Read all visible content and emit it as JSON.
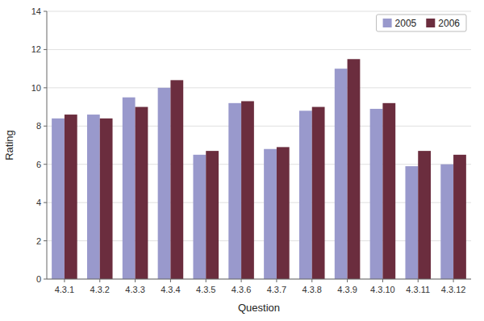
{
  "chart_data": {
    "type": "bar",
    "xlabel": "Question",
    "ylabel": "Rating",
    "categories": [
      "4.3.1",
      "4.3.2",
      "4.3.3",
      "4.3.4",
      "4.3.5",
      "4.3.6",
      "4.3.7",
      "4.3.8",
      "4.3.9",
      "4.3.10",
      "4.3.11",
      "4.3.12"
    ],
    "series": [
      {
        "name": "2005",
        "color": "#9999cc",
        "values": [
          8.4,
          8.6,
          9.5,
          10.0,
          6.5,
          9.2,
          6.8,
          8.8,
          11.0,
          8.9,
          5.9,
          6.0
        ]
      },
      {
        "name": "2006",
        "color": "#6b2d3e",
        "values": [
          8.6,
          8.4,
          9.0,
          10.4,
          6.7,
          9.3,
          6.9,
          9.0,
          11.5,
          9.2,
          6.7,
          6.5
        ]
      }
    ],
    "ylim": [
      0,
      14
    ],
    "yticks": [
      0,
      2,
      4,
      6,
      8,
      10,
      12,
      14
    ],
    "grid": true,
    "legend": "upper right"
  }
}
